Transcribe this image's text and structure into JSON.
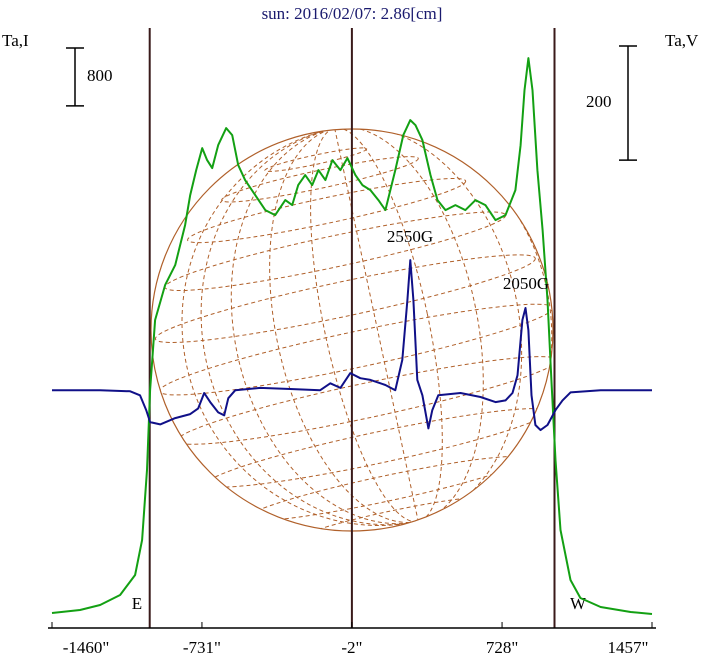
{
  "chart_data": {
    "type": "line",
    "title": "sun: 2016/02/07: 2.86[cm]",
    "y_label": "Ta,I",
    "y2_label": "Ta,V",
    "xlim": [
      -1460,
      1457
    ],
    "xticks": [
      {
        "value": -1460,
        "label": "-1460\""
      },
      {
        "value": -731,
        "label": "-731\""
      },
      {
        "value": -2,
        "label": "-2\""
      },
      {
        "value": 728,
        "label": "728\""
      },
      {
        "value": 1457,
        "label": "1457\""
      }
    ],
    "ylim": [
      -100,
      8200
    ],
    "y2lim": [
      -417,
      635
    ],
    "vlines": [
      -985,
      -2,
      983
    ],
    "limb_labels": [
      "E",
      "W"
    ],
    "scale_bars": [
      {
        "axis": "y",
        "value": 800
      },
      {
        "axis": "y2",
        "value": 200
      }
    ],
    "annotations": [
      "2550G",
      "2050G"
    ],
    "series": [
      {
        "color": "#13a013",
        "x": [
          -1460,
          -1324,
          -1226,
          -1129,
          -1056,
          -1022,
          -998,
          -983,
          -959,
          -910,
          -861,
          -813,
          -788,
          -759,
          -730,
          -706,
          -681,
          -652,
          -613,
          -584,
          -555,
          -521,
          -472,
          -423,
          -375,
          -326,
          -292,
          -263,
          -229,
          -195,
          -165,
          -131,
          -97,
          -58,
          -24,
          15,
          49,
          88,
          127,
          161,
          209,
          248,
          282,
          307,
          341,
          380,
          414,
          453,
          501,
          550,
          599,
          647,
          696,
          745,
          793,
          818,
          837,
          856,
          876,
          900,
          925,
          949,
          968,
          988,
          1012,
          1061,
          1109,
          1207,
          1353,
          1457
        ],
        "values": [
          107,
          149,
          218,
          356,
          633,
          1117,
          2085,
          3192,
          4160,
          4644,
          4920,
          5473,
          5888,
          6234,
          6538,
          6372,
          6262,
          6580,
          6815,
          6718,
          6303,
          6096,
          5888,
          5681,
          5612,
          5819,
          5750,
          6027,
          6165,
          6027,
          6234,
          6096,
          6372,
          6234,
          6400,
          6165,
          6027,
          5958,
          5819,
          5681,
          6234,
          6718,
          6926,
          6856,
          6649,
          6165,
          5819,
          5681,
          5750,
          5681,
          5819,
          5750,
          5543,
          5612,
          5958,
          6580,
          7340,
          7783,
          7340,
          6234,
          5404,
          4436,
          3330,
          2223,
          1255,
          564,
          315,
          190,
          121,
          94
        ]
      },
      {
        "color": "#101088",
        "axis": "y2",
        "x": [
          -1460,
          -1226,
          -1080,
          -1032,
          -1002,
          -983,
          -934,
          -861,
          -788,
          -749,
          -720,
          -691,
          -652,
          -623,
          -603,
          -569,
          -448,
          -302,
          -156,
          -107,
          -58,
          -10,
          39,
          88,
          161,
          209,
          243,
          268,
          282,
          297,
          316,
          341,
          370,
          389,
          418,
          526,
          623,
          696,
          745,
          779,
          803,
          827,
          842,
          856,
          871,
          890,
          915,
          949,
          988,
          1022,
          1061,
          1207,
          1457
        ],
        "values": [
          0,
          0,
          -2,
          -9,
          -35,
          -56,
          -60,
          -49,
          -42,
          -32,
          -5,
          -21,
          -39,
          -44,
          -14,
          0,
          4,
          2,
          0,
          12,
          4,
          30,
          21,
          18,
          9,
          0,
          53,
          158,
          228,
          158,
          18,
          -9,
          -67,
          -35,
          -9,
          -5,
          -12,
          -21,
          -18,
          -5,
          26,
          123,
          144,
          105,
          -9,
          -61,
          -70,
          -61,
          -35,
          -18,
          -4,
          0,
          0
        ]
      }
    ]
  }
}
